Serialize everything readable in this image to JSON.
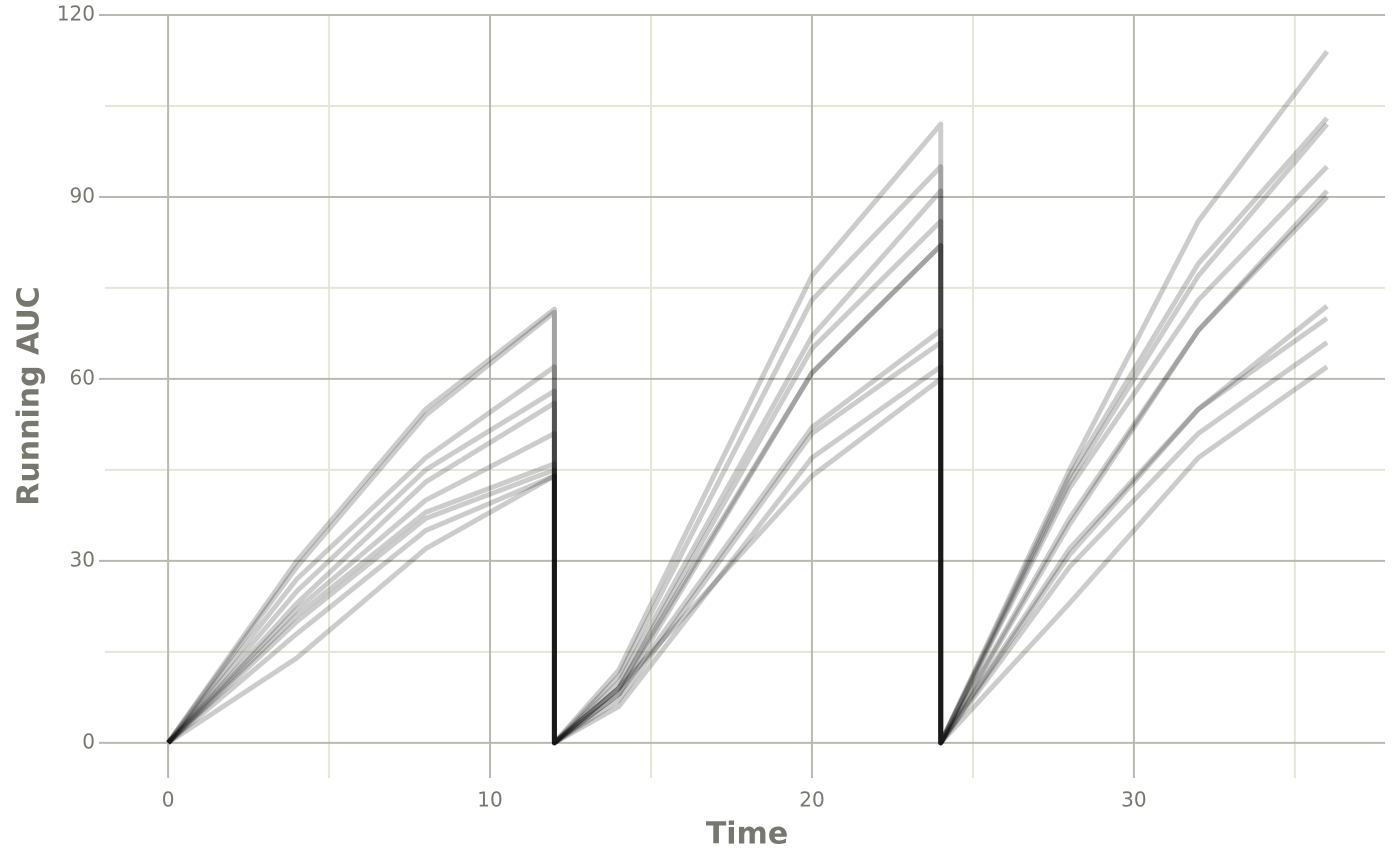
{
  "chart_data": {
    "type": "line",
    "x_label": "Time",
    "y_label": "Running AUC",
    "x": [
      0,
      4,
      8,
      12,
      12,
      14,
      20,
      24,
      24,
      28,
      32,
      36
    ],
    "series": [
      {
        "color": "#000000",
        "values": [
          0,
          30,
          55,
          71.5,
          0,
          12,
          77,
          102,
          0,
          45,
          86,
          114
        ]
      },
      {
        "color": "#000000",
        "values": [
          0,
          29,
          54,
          71,
          0,
          11,
          73,
          95,
          0,
          44,
          79,
          103
        ]
      },
      {
        "color": "#000000",
        "values": [
          0,
          27,
          47,
          62,
          0,
          10,
          67,
          91,
          0,
          43,
          77,
          102
        ]
      },
      {
        "color": "#000000",
        "values": [
          0,
          25,
          45,
          58,
          0,
          9,
          65,
          86,
          0,
          42,
          73,
          95
        ]
      },
      {
        "color": "#000000",
        "values": [
          0,
          23,
          43,
          56,
          0,
          9,
          61,
          82,
          0,
          37,
          68,
          91
        ]
      },
      {
        "color": "#000000",
        "values": [
          0,
          22,
          40,
          51,
          0,
          8,
          61,
          82,
          0,
          36,
          68,
          90
        ]
      },
      {
        "color": "#000000",
        "values": [
          0,
          21,
          38,
          46,
          0,
          8,
          52,
          68,
          0,
          32,
          55,
          72
        ]
      },
      {
        "color": "#000000",
        "values": [
          0,
          20,
          37,
          45,
          0,
          7,
          51,
          66,
          0,
          31,
          55,
          70
        ]
      },
      {
        "color": "#000000",
        "values": [
          0,
          18,
          35,
          44,
          0,
          6,
          47,
          62,
          0,
          29,
          51,
          66
        ]
      },
      {
        "color": "#000000",
        "values": [
          0,
          14,
          32,
          44,
          0,
          9,
          44,
          60,
          0,
          23,
          47,
          62
        ]
      }
    ],
    "line_opacity": 0.2,
    "xlim": [
      -1.96,
      37.8
    ],
    "ylim": [
      -5.8,
      120
    ],
    "xticks": [
      0,
      10,
      20,
      30
    ],
    "yticks": [
      0,
      30,
      60,
      90,
      120
    ],
    "minor_xticks": [
      5,
      15,
      25,
      35
    ],
    "minor_yticks": [
      15,
      45,
      75,
      105
    ],
    "grid": true,
    "grid_color": "#b9b9b0",
    "minor_grid_color": "#e6e6d6"
  }
}
